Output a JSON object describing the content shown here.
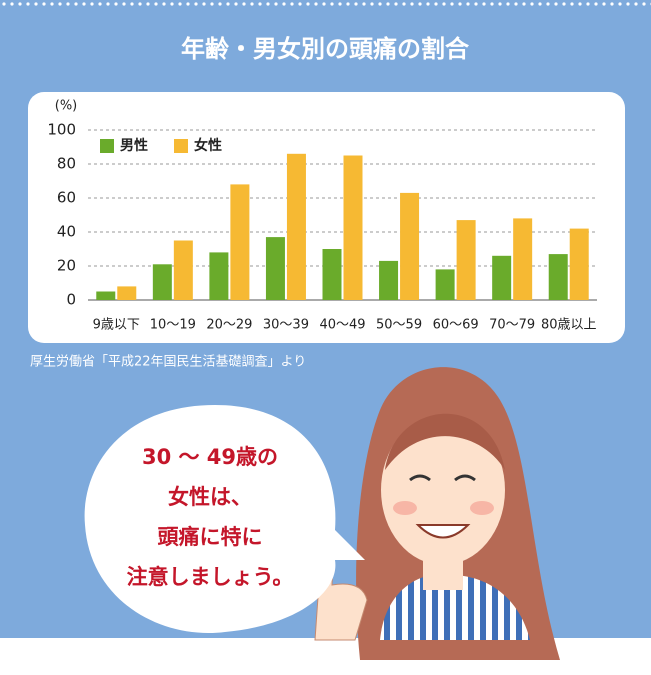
{
  "chart_data": {
    "type": "bar",
    "title": "年齢・男女別の頭痛の割合",
    "y_label": "(%)",
    "categories": [
      "9歳以下",
      "10〜19",
      "20〜29",
      "30〜39",
      "40〜49",
      "50〜59",
      "60〜69",
      "70〜79",
      "80歳以上"
    ],
    "series": [
      {
        "name": "男性",
        "color": "#6aab2b",
        "values": [
          5,
          21,
          28,
          37,
          30,
          23,
          18,
          26,
          27
        ]
      },
      {
        "name": "女性",
        "color": "#f6b933",
        "values": [
          8,
          35,
          68,
          86,
          85,
          63,
          47,
          48,
          42
        ]
      }
    ],
    "ylim": [
      0,
      100
    ],
    "yticks": [
      0,
      20,
      40,
      60,
      80,
      100
    ],
    "grid": true,
    "legend": "top-left",
    "source": "厚生労働省「平成22年国民生活基礎調査」より"
  },
  "speech_bubble": {
    "lines": [
      "30 〜 49歳の",
      "女性は、",
      "頭痛に特に",
      "注意しましょう。"
    ]
  }
}
